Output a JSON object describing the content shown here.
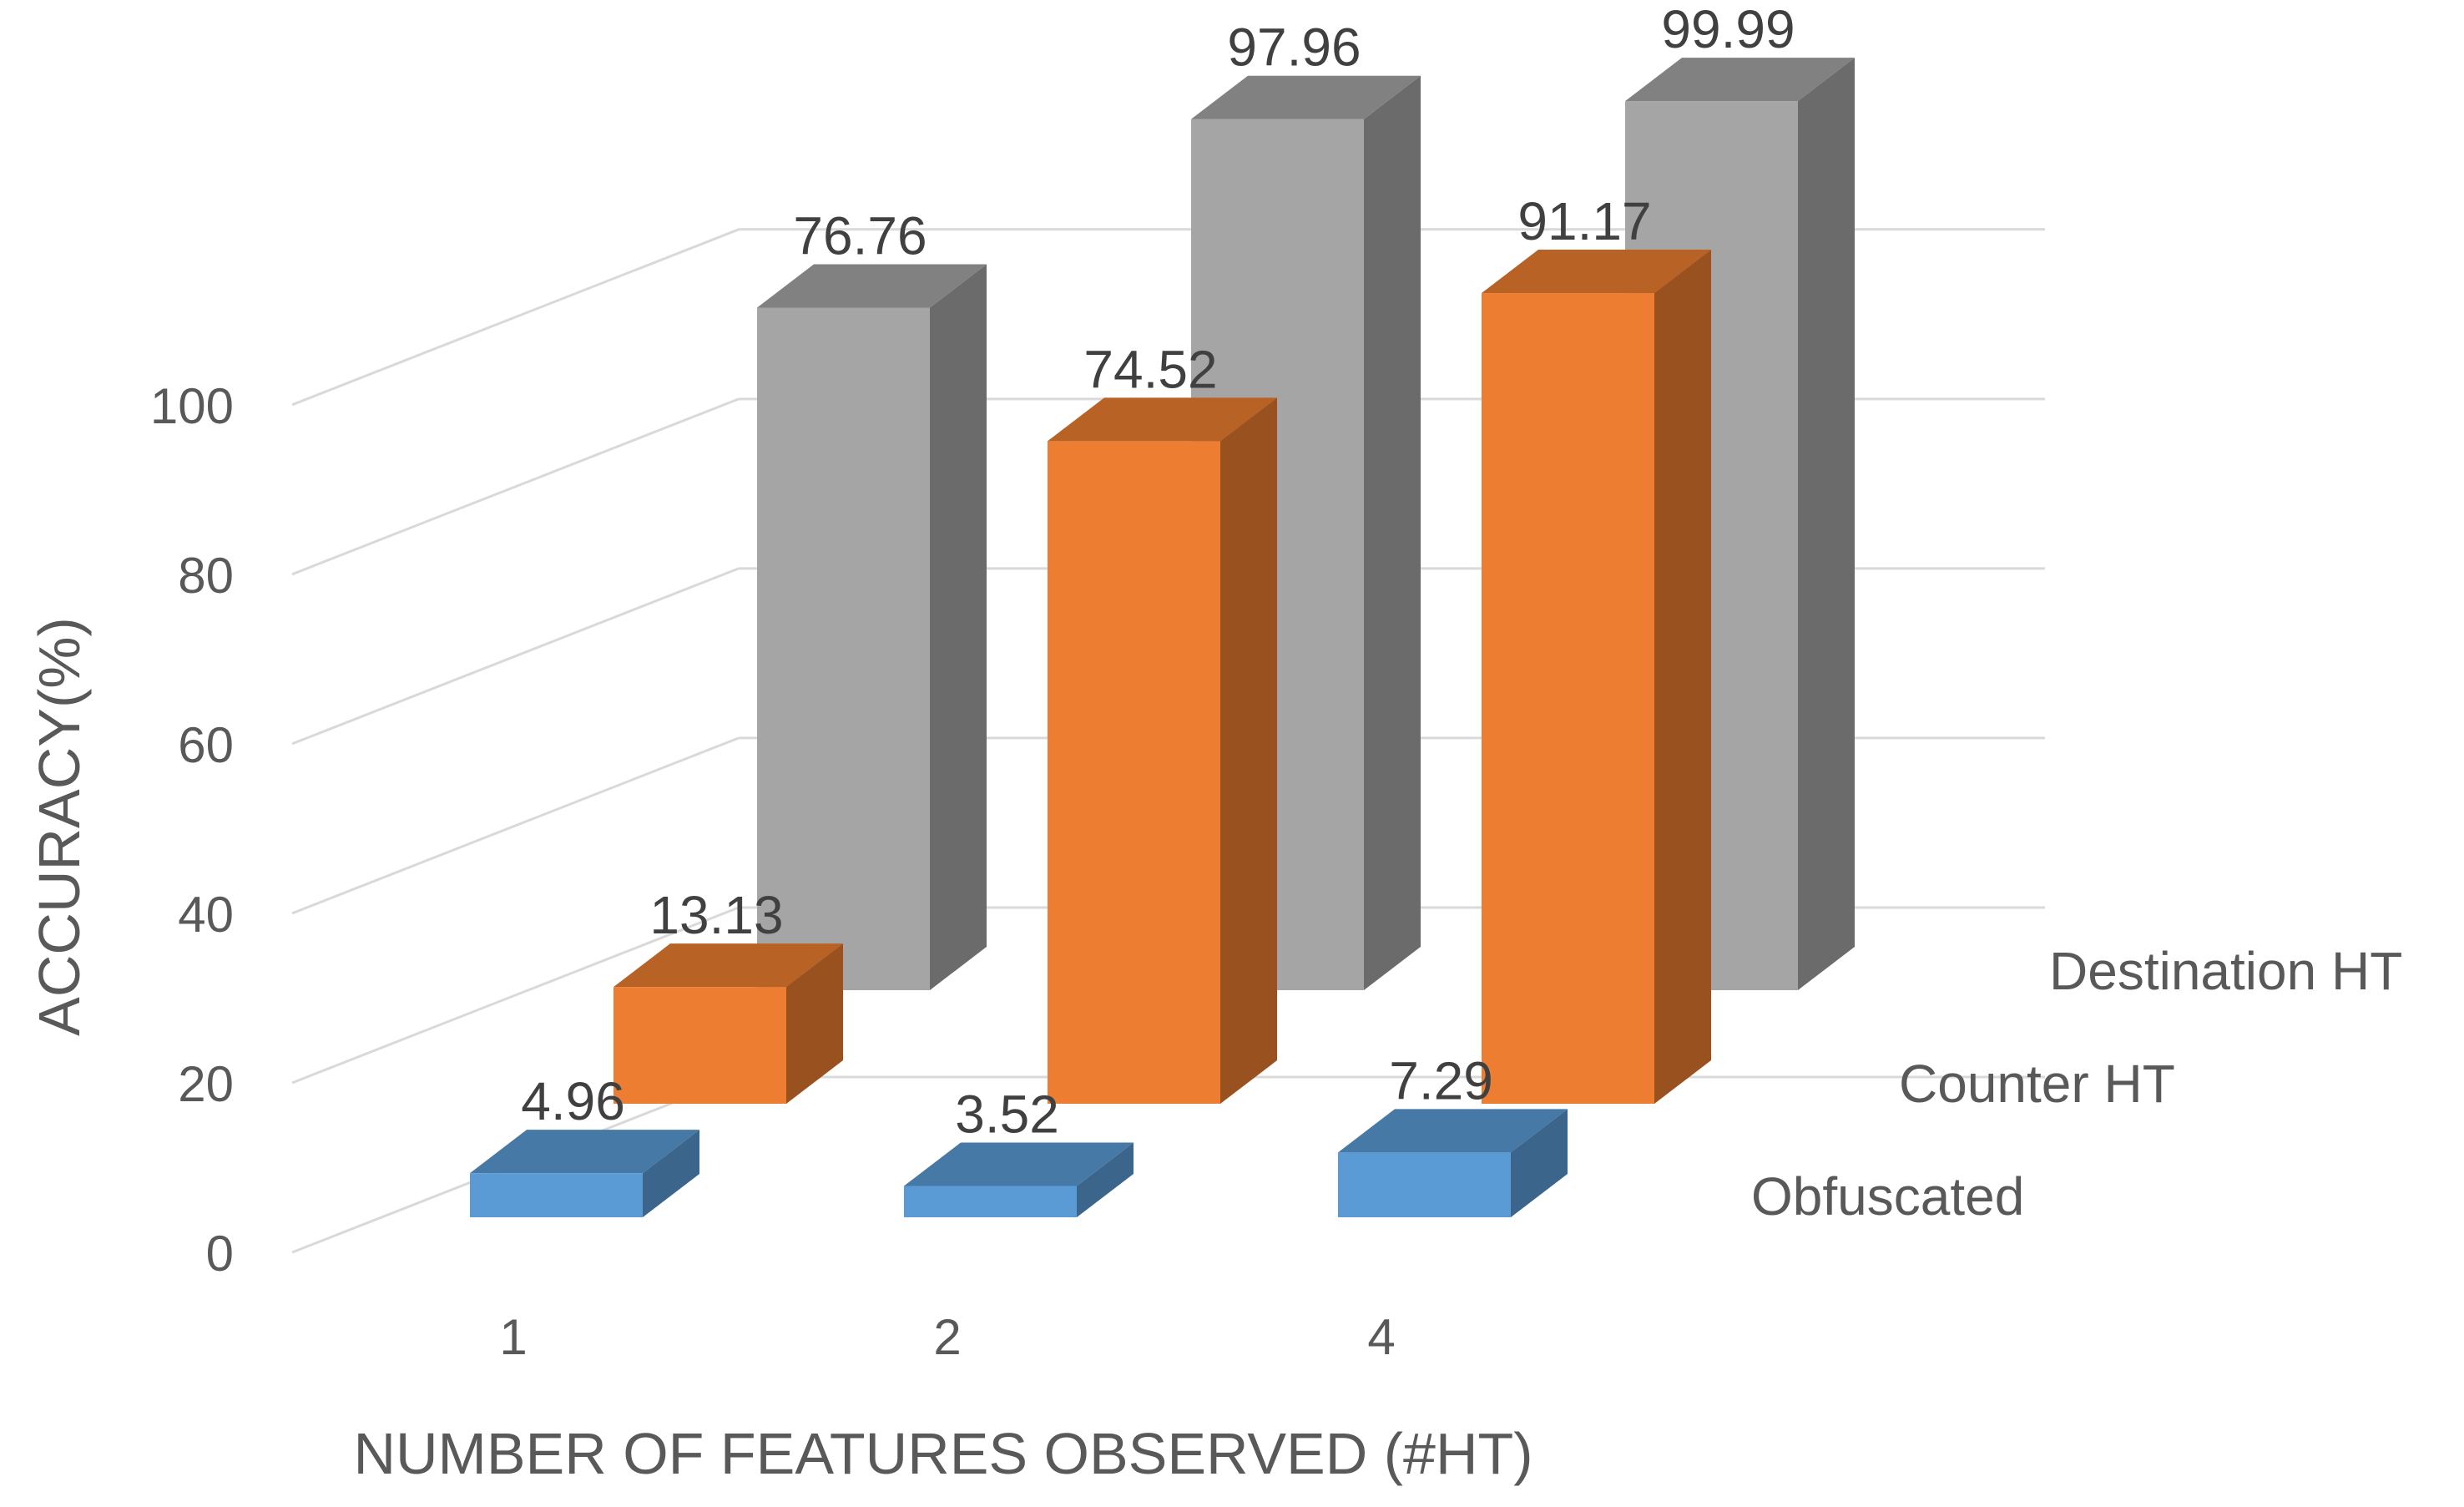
{
  "chart_data": {
    "type": "bar",
    "subtype": "3d-column",
    "title": "",
    "xlabel": "NUMBER OF FEATURES OBSERVED (#HT)",
    "ylabel": "ACCURACY(%)",
    "ylim": [
      0,
      100
    ],
    "yticks": [
      "0",
      "20",
      "40",
      "60",
      "80",
      "100"
    ],
    "categories": [
      "1",
      "2",
      "4"
    ],
    "grid": true,
    "legend": "depth-axis labels at right",
    "series": [
      {
        "name": "Obfuscated",
        "color": "#5B9BD5",
        "values": [
          4.96,
          3.52,
          7.29
        ],
        "labels": [
          "4.96",
          "3.52",
          "7.29"
        ]
      },
      {
        "name": "Counter HT",
        "color": "#ED7D31",
        "values": [
          13.13,
          74.52,
          91.17
        ],
        "labels": [
          "13.13",
          "74.52",
          "91.17"
        ]
      },
      {
        "name": "Destination HT",
        "color": "#A5A5A5",
        "values": [
          76.76,
          97.96,
          99.99
        ],
        "labels": [
          "76.76",
          "97.96",
          "99.99"
        ]
      }
    ]
  }
}
